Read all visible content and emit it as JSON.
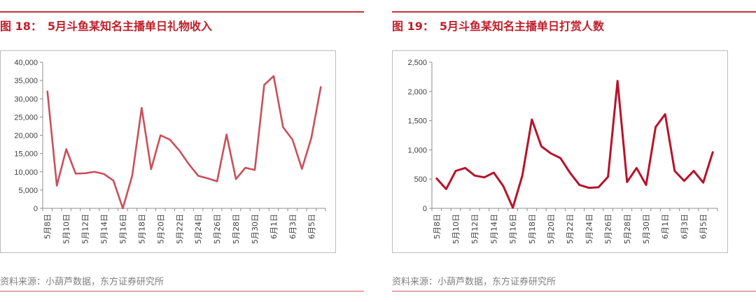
{
  "source_text": "资料来源：小葫芦数据，东方证券研究所",
  "charts": [
    {
      "fig_label": "图 18：",
      "title": "5月斗鱼某知名主播单日礼物收入",
      "color": "#c8505a",
      "stroke_width": 2.6
    },
    {
      "fig_label": "图 19：",
      "title": "5月斗鱼某知名主播单日打赏人数",
      "color": "#b8122a",
      "stroke_width": 3
    }
  ],
  "chart_data": [
    {
      "type": "line",
      "title": "5月斗鱼某知名主播单日礼物收入",
      "xlabel": "",
      "ylabel": "",
      "ylim": [
        0,
        40000
      ],
      "yticks": [
        0,
        5000,
        10000,
        15000,
        20000,
        25000,
        30000,
        35000,
        40000
      ],
      "ytick_labels": [
        "0",
        "5,000",
        "10,000",
        "15,000",
        "20,000",
        "25,000",
        "30,000",
        "35,000",
        "40,000"
      ],
      "categories": [
        "5月8日",
        "5月9日",
        "5月10日",
        "5月11日",
        "5月12日",
        "5月13日",
        "5月14日",
        "5月15日",
        "5月16日",
        "5月17日",
        "5月18日",
        "5月19日",
        "5月20日",
        "5月21日",
        "5月22日",
        "5月23日",
        "5月24日",
        "5月25日",
        "5月26日",
        "5月27日",
        "5月28日",
        "5月29日",
        "5月30日",
        "5月31日",
        "6月1日",
        "6月2日",
        "6月3日",
        "6月4日",
        "6月5日",
        "6月6日"
      ],
      "xtick_labels": [
        "5月8日",
        "5月10日",
        "5月12日",
        "5月14日",
        "5月16日",
        "5月18日",
        "5月20日",
        "5月22日",
        "5月24日",
        "5月26日",
        "5月28日",
        "5月30日",
        "6月1日",
        "6月3日",
        "6月5日"
      ],
      "values": [
        32000,
        6200,
        16200,
        9500,
        9600,
        10000,
        9400,
        7600,
        0,
        9000,
        27500,
        10700,
        20000,
        18800,
        15800,
        12100,
        8900,
        8200,
        7400,
        20200,
        8000,
        11100,
        10500,
        33800,
        36200,
        22200,
        18800,
        10800,
        19300,
        33200
      ],
      "grid": false,
      "legend": "none"
    },
    {
      "type": "line",
      "title": "5月斗鱼某知名主播单日打赏人数",
      "xlabel": "",
      "ylabel": "",
      "ylim": [
        0,
        2500
      ],
      "yticks": [
        0,
        500,
        1000,
        1500,
        2000,
        2500
      ],
      "ytick_labels": [
        "0",
        "500",
        "1,000",
        "1,500",
        "2,000",
        "2,500"
      ],
      "categories": [
        "5月8日",
        "5月9日",
        "5月10日",
        "5月11日",
        "5月12日",
        "5月13日",
        "5月14日",
        "5月15日",
        "5月16日",
        "5月17日",
        "5月18日",
        "5月19日",
        "5月20日",
        "5月21日",
        "5月22日",
        "5月23日",
        "5月24日",
        "5月25日",
        "5月26日",
        "5月27日",
        "5月28日",
        "5月29日",
        "5月30日",
        "5月31日",
        "6月1日",
        "6月2日",
        "6月3日",
        "6月4日",
        "6月5日",
        "6月6日"
      ],
      "xtick_labels": [
        "5月8日",
        "5月10日",
        "5月12日",
        "5月14日",
        "5月16日",
        "5月18日",
        "5月20日",
        "5月22日",
        "5月24日",
        "5月26日",
        "5月28日",
        "5月30日",
        "6月1日",
        "6月3日",
        "6月5日"
      ],
      "values": [
        510,
        330,
        640,
        690,
        560,
        530,
        610,
        380,
        10,
        560,
        1520,
        1060,
        940,
        860,
        610,
        400,
        350,
        360,
        540,
        2180,
        450,
        690,
        400,
        1390,
        1610,
        640,
        470,
        640,
        440,
        960
      ],
      "grid": false,
      "legend": "none"
    }
  ]
}
